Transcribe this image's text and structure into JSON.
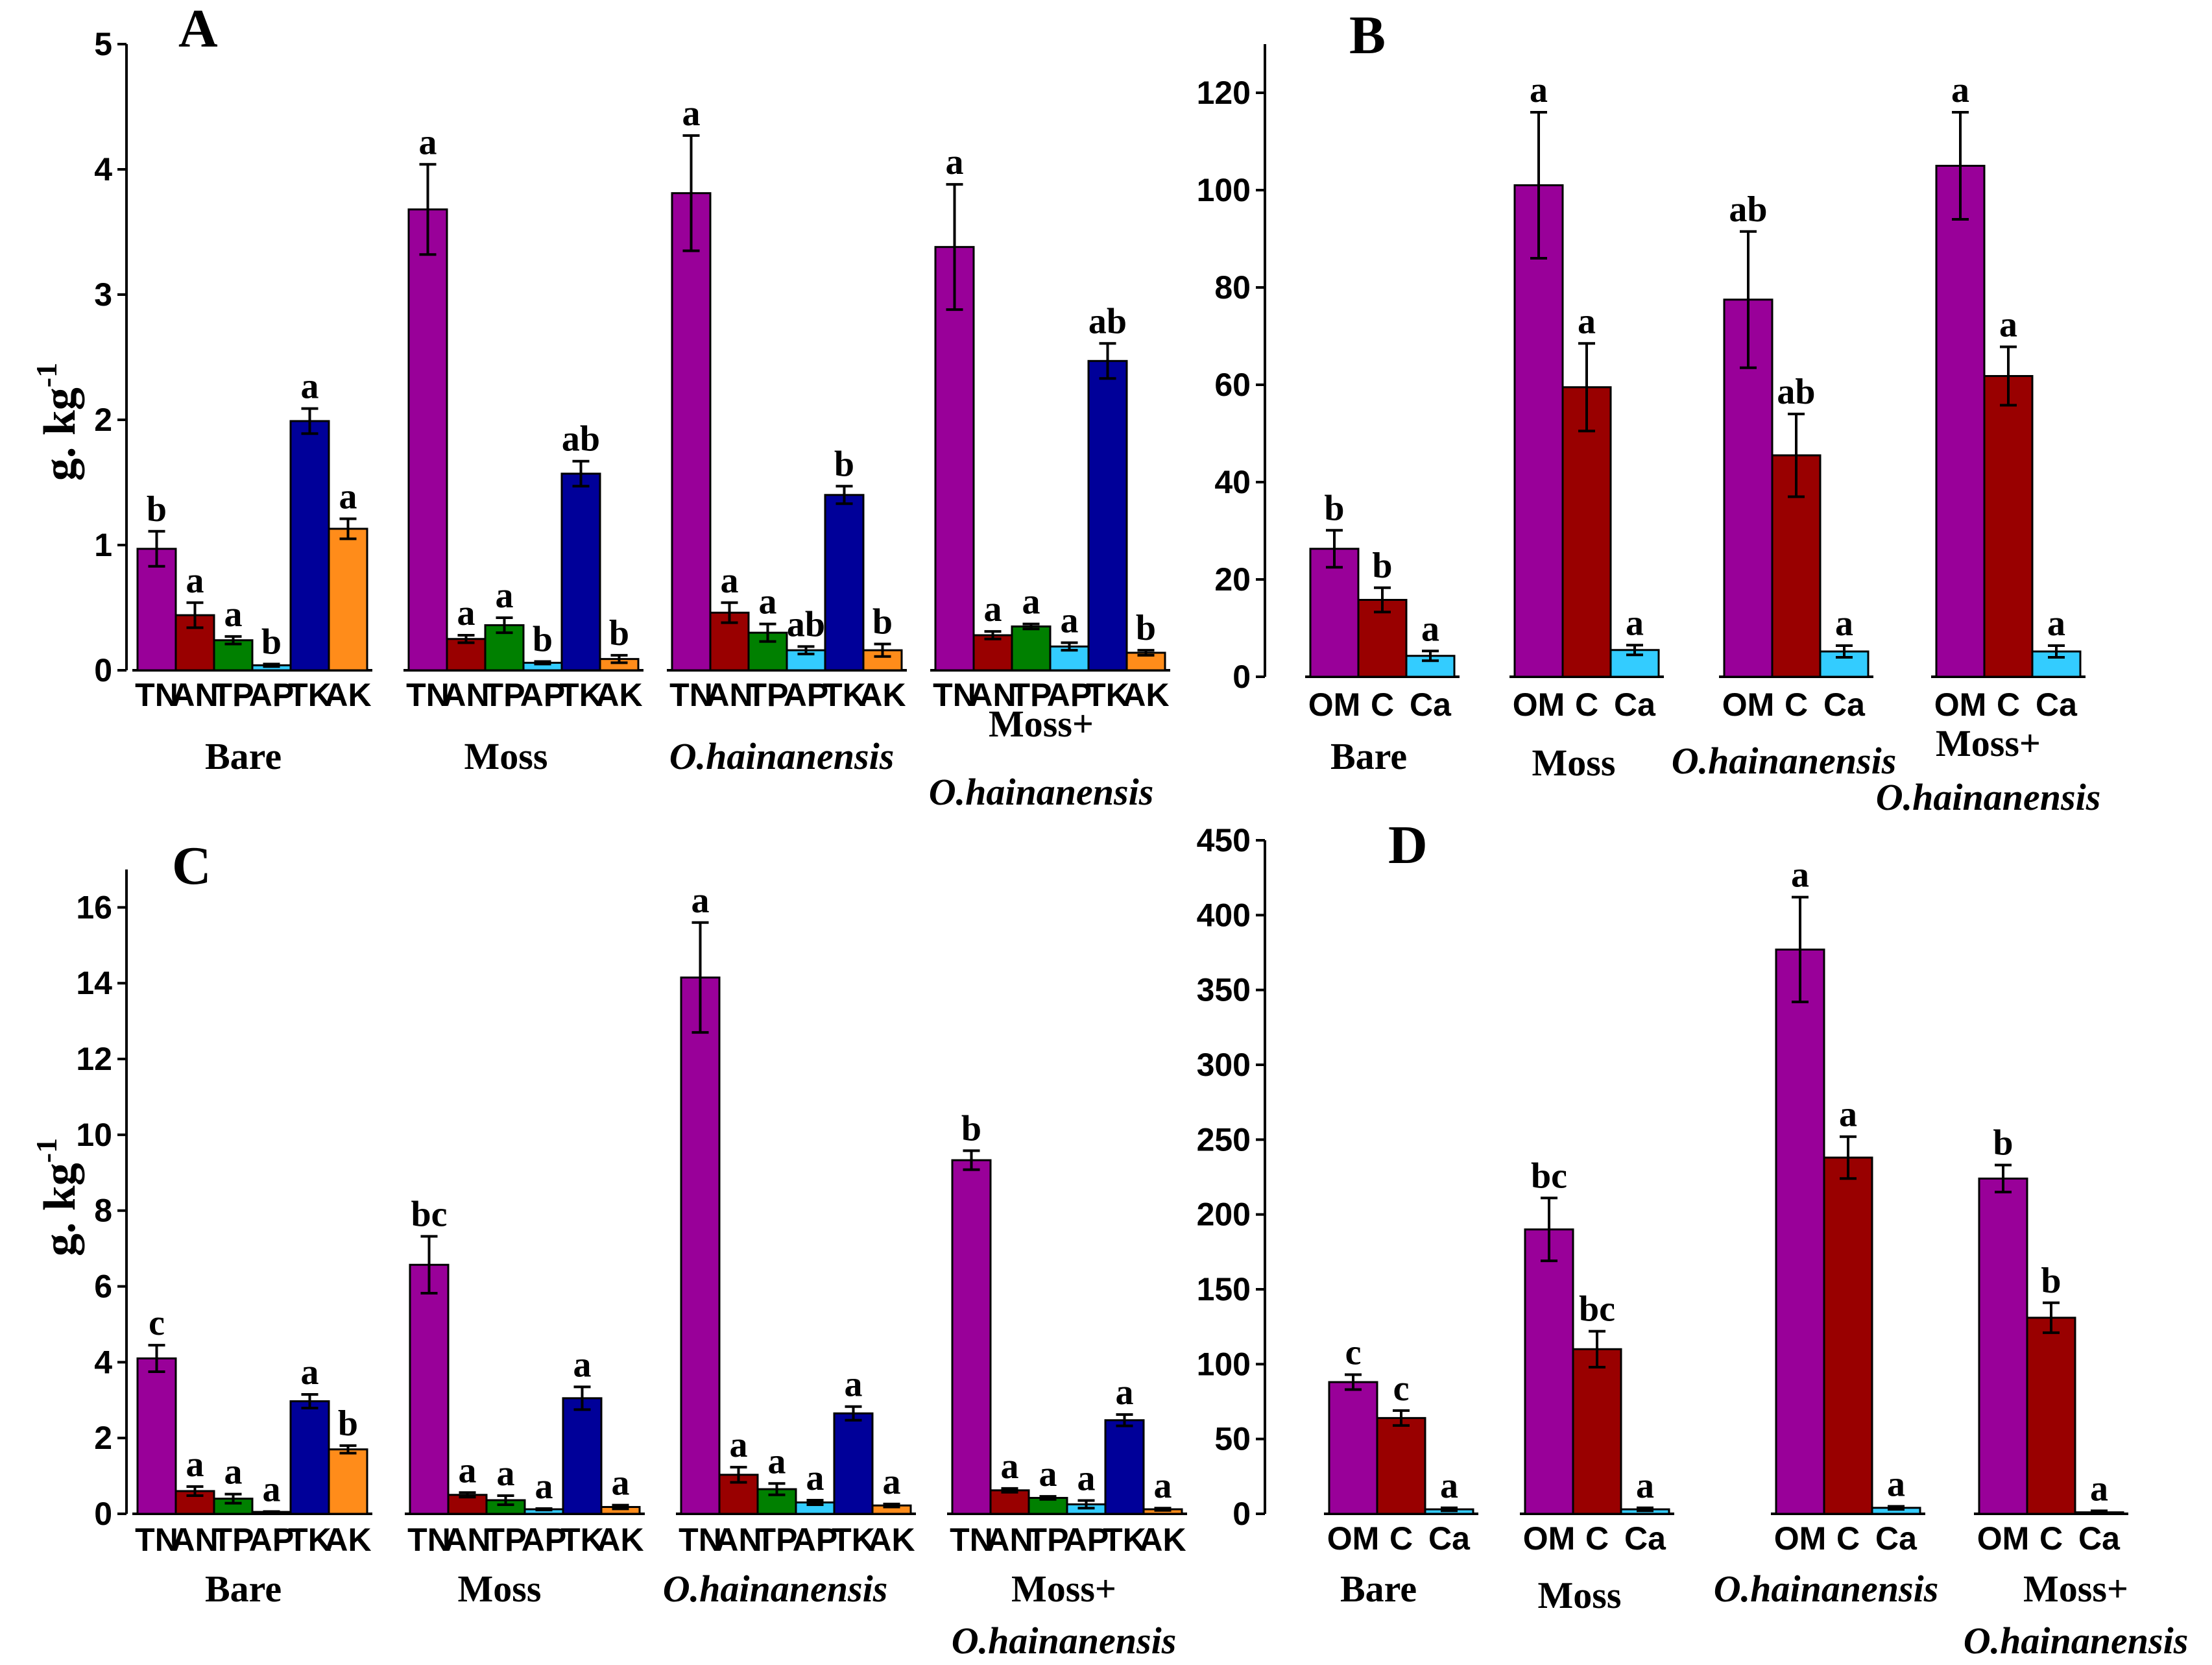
{
  "chart_data": [
    {
      "panel": "A",
      "type": "bar",
      "ylabel": "g. kg",
      "ylabel_sup": "-1",
      "ylim": [
        0,
        5
      ],
      "yticks": [
        0,
        1,
        2,
        3,
        4,
        5
      ],
      "categories": [
        "TN",
        "AN",
        "TP",
        "AP",
        "TK",
        "AK"
      ],
      "colors": [
        "#990099",
        "#990000",
        "#008000",
        "#33ccff",
        "#000099",
        "#ff8c1a"
      ],
      "groups": [
        {
          "name": "Bare",
          "italic": false,
          "values": [
            0.97,
            0.44,
            0.24,
            0.04,
            1.99,
            1.13
          ],
          "errors": [
            0.14,
            0.1,
            0.03,
            0.01,
            0.1,
            0.08
          ],
          "sig": [
            "b",
            "a",
            "a",
            "b",
            "a",
            "a"
          ]
        },
        {
          "name": "Moss",
          "italic": false,
          "values": [
            3.68,
            0.25,
            0.36,
            0.06,
            1.57,
            0.09
          ],
          "errors": [
            0.36,
            0.03,
            0.06,
            0.01,
            0.1,
            0.03
          ],
          "sig": [
            "a",
            "a",
            "a",
            "b",
            "ab",
            "b"
          ]
        },
        {
          "name": "O.hainanensis",
          "italic": true,
          "values": [
            3.81,
            0.46,
            0.3,
            0.16,
            1.4,
            0.16
          ],
          "errors": [
            0.46,
            0.08,
            0.07,
            0.03,
            0.07,
            0.05
          ],
          "sig": [
            "a",
            "a",
            "a",
            "ab",
            "b",
            "b"
          ]
        },
        {
          "name": "Moss+",
          "name2": "O.hainanensis",
          "italic": false,
          "values": [
            3.38,
            0.28,
            0.35,
            0.19,
            2.47,
            0.14
          ],
          "errors": [
            0.5,
            0.03,
            0.02,
            0.03,
            0.14,
            0.02
          ],
          "sig": [
            "a",
            "a",
            "a",
            "a",
            "ab",
            "b"
          ]
        }
      ]
    },
    {
      "panel": "B",
      "type": "bar",
      "ylim": [
        0,
        130
      ],
      "yticks": [
        0,
        20,
        40,
        60,
        80,
        100,
        120
      ],
      "categories": [
        "OM",
        "C",
        "Ca"
      ],
      "colors": [
        "#990099",
        "#990000",
        "#33ccff"
      ],
      "groups": [
        {
          "name": "Bare",
          "italic": false,
          "values": [
            26.3,
            15.8,
            4.3
          ],
          "errors": [
            3.8,
            2.5,
            1.0
          ],
          "sig": [
            "b",
            "b",
            "a"
          ]
        },
        {
          "name": "Moss",
          "italic": false,
          "values": [
            101.0,
            59.5,
            5.5
          ],
          "errors": [
            15.0,
            9.0,
            1.0
          ],
          "sig": [
            "a",
            "a",
            "a"
          ]
        },
        {
          "name": "O.hainanensis",
          "italic": true,
          "values": [
            77.5,
            45.5,
            5.2
          ],
          "errors": [
            14.0,
            8.5,
            1.2
          ],
          "sig": [
            "ab",
            "ab",
            "a"
          ]
        },
        {
          "name": "Moss+",
          "name2": "O.hainanensis",
          "italic": false,
          "values": [
            105.0,
            61.8,
            5.2
          ],
          "errors": [
            11.0,
            6.0,
            1.2
          ],
          "sig": [
            "a",
            "a",
            "a"
          ]
        }
      ]
    },
    {
      "panel": "C",
      "type": "bar",
      "ylabel": "g. kg",
      "ylabel_sup": "-1",
      "ylim": [
        0,
        17
      ],
      "yticks": [
        0,
        2,
        4,
        6,
        8,
        10,
        12,
        14,
        16
      ],
      "categories": [
        "TN",
        "AN",
        "TP",
        "AP",
        "TK",
        "AK"
      ],
      "colors": [
        "#990099",
        "#990000",
        "#008000",
        "#33ccff",
        "#000099",
        "#ff8c1a"
      ],
      "groups": [
        {
          "name": "Bare",
          "italic": false,
          "values": [
            4.1,
            0.6,
            0.4,
            0.05,
            2.97,
            1.7
          ],
          "errors": [
            0.35,
            0.12,
            0.12,
            0.01,
            0.18,
            0.1
          ],
          "sig": [
            "c",
            "a",
            "a",
            "a",
            "a",
            "b"
          ]
        },
        {
          "name": "Moss",
          "italic": false,
          "values": [
            6.57,
            0.5,
            0.36,
            0.12,
            3.05,
            0.18
          ],
          "errors": [
            0.75,
            0.06,
            0.12,
            0.02,
            0.3,
            0.05
          ],
          "sig": [
            "bc",
            "a",
            "a",
            "a",
            "a",
            "a"
          ]
        },
        {
          "name": "O.hainanensis",
          "italic": true,
          "values": [
            14.15,
            1.03,
            0.65,
            0.3,
            2.65,
            0.22
          ],
          "errors": [
            1.45,
            0.2,
            0.15,
            0.06,
            0.18,
            0.04
          ],
          "sig": [
            "a",
            "a",
            "a",
            "a",
            "a",
            "a"
          ]
        },
        {
          "name": "Moss+",
          "name2": "O.hainanensis",
          "italic": false,
          "values": [
            9.33,
            0.62,
            0.42,
            0.25,
            2.47,
            0.12
          ],
          "errors": [
            0.25,
            0.05,
            0.04,
            0.1,
            0.15,
            0.03
          ],
          "sig": [
            "b",
            "a",
            "a",
            "a",
            "a",
            "a"
          ]
        }
      ]
    },
    {
      "panel": "D",
      "type": "bar",
      "ylim": [
        0,
        450
      ],
      "yticks": [
        0,
        50,
        100,
        150,
        200,
        250,
        300,
        350,
        400,
        450
      ],
      "categories": [
        "OM",
        "C",
        "Ca"
      ],
      "colors": [
        "#990099",
        "#990000",
        "#33ccff"
      ],
      "groups": [
        {
          "name": "Bare",
          "italic": false,
          "values": [
            88,
            64,
            3
          ],
          "errors": [
            5,
            5,
            1
          ],
          "sig": [
            "c",
            "c",
            "a"
          ]
        },
        {
          "name": "Moss",
          "italic": false,
          "values": [
            190,
            110,
            3
          ],
          "errors": [
            21,
            12,
            1
          ],
          "sig": [
            "bc",
            "bc",
            "a"
          ]
        },
        {
          "name": "O.hainanensis",
          "italic": true,
          "values": [
            377,
            238,
            4
          ],
          "errors": [
            35,
            14,
            1
          ],
          "sig": [
            "a",
            "a",
            "a"
          ]
        },
        {
          "name": "Moss+",
          "name2": "O.hainanensis",
          "italic": false,
          "values": [
            224,
            131,
            1
          ],
          "errors": [
            9,
            10,
            1
          ],
          "sig": [
            "b",
            "b",
            "a"
          ]
        }
      ]
    }
  ]
}
